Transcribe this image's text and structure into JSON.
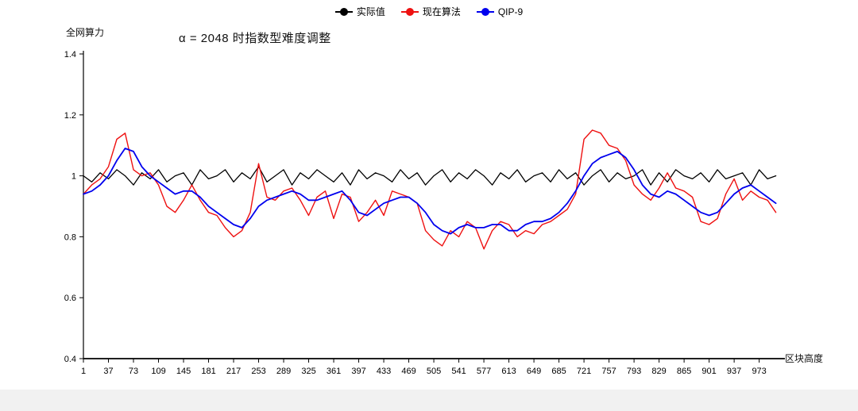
{
  "chart_data": {
    "type": "line",
    "title": "α = 2048 时指数型难度调整",
    "ylabel": "全网算力",
    "xlabel": "区块高度",
    "legend_position": "top",
    "grid": false,
    "xlim": [
      1,
      1010
    ],
    "ylim": [
      0.4,
      1.4
    ],
    "y_ticks": [
      0.4,
      0.6,
      0.8,
      1,
      1.2,
      1.4
    ],
    "x_ticks": [
      1,
      37,
      73,
      109,
      145,
      181,
      217,
      253,
      289,
      325,
      361,
      397,
      433,
      469,
      505,
      541,
      577,
      613,
      649,
      685,
      721,
      757,
      793,
      829,
      865,
      901,
      937,
      973
    ],
    "x": [
      1,
      13,
      25,
      37,
      49,
      61,
      73,
      85,
      97,
      109,
      121,
      133,
      145,
      157,
      169,
      181,
      193,
      205,
      217,
      229,
      241,
      253,
      265,
      277,
      289,
      301,
      313,
      325,
      337,
      349,
      361,
      373,
      385,
      397,
      409,
      421,
      433,
      445,
      457,
      469,
      481,
      493,
      505,
      517,
      529,
      541,
      553,
      565,
      577,
      589,
      601,
      613,
      625,
      637,
      649,
      661,
      673,
      685,
      697,
      709,
      721,
      733,
      745,
      757,
      769,
      781,
      793,
      805,
      817,
      829,
      841,
      853,
      865,
      877,
      889,
      901,
      913,
      925,
      937,
      949,
      961,
      973,
      985,
      997
    ],
    "series": [
      {
        "name": "实际值",
        "color": "#000000",
        "values": [
          1.0,
          0.98,
          1.01,
          0.99,
          1.02,
          1.0,
          0.97,
          1.01,
          0.99,
          1.02,
          0.98,
          1.0,
          1.01,
          0.97,
          1.02,
          0.99,
          1.0,
          1.02,
          0.98,
          1.01,
          0.99,
          1.03,
          0.98,
          1.0,
          1.02,
          0.97,
          1.01,
          0.99,
          1.02,
          1.0,
          0.98,
          1.01,
          0.97,
          1.02,
          0.99,
          1.01,
          1.0,
          0.98,
          1.02,
          0.99,
          1.01,
          0.97,
          1.0,
          1.02,
          0.98,
          1.01,
          0.99,
          1.02,
          1.0,
          0.97,
          1.01,
          0.99,
          1.02,
          0.98,
          1.0,
          1.01,
          0.98,
          1.02,
          0.99,
          1.01,
          0.97,
          1.0,
          1.02,
          0.98,
          1.01,
          0.99,
          1.0,
          1.02,
          0.97,
          1.01,
          0.98,
          1.02,
          1.0,
          0.99,
          1.01,
          0.98,
          1.02,
          0.99,
          1.0,
          1.01,
          0.97,
          1.02,
          0.99,
          1.0
        ]
      },
      {
        "name": "现在算法",
        "color": "#ee1111",
        "values": [
          0.94,
          0.97,
          0.99,
          1.03,
          1.12,
          1.14,
          1.02,
          1.0,
          1.01,
          0.97,
          0.9,
          0.88,
          0.92,
          0.97,
          0.92,
          0.88,
          0.87,
          0.83,
          0.8,
          0.82,
          0.88,
          1.04,
          0.93,
          0.92,
          0.95,
          0.96,
          0.92,
          0.87,
          0.93,
          0.95,
          0.86,
          0.94,
          0.93,
          0.85,
          0.88,
          0.92,
          0.87,
          0.95,
          0.94,
          0.93,
          0.91,
          0.82,
          0.79,
          0.77,
          0.82,
          0.8,
          0.85,
          0.83,
          0.76,
          0.82,
          0.85,
          0.84,
          0.8,
          0.82,
          0.81,
          0.84,
          0.85,
          0.87,
          0.89,
          0.94,
          1.12,
          1.15,
          1.14,
          1.1,
          1.09,
          1.05,
          0.97,
          0.94,
          0.92,
          0.96,
          1.01,
          0.96,
          0.95,
          0.93,
          0.85,
          0.84,
          0.86,
          0.94,
          0.99,
          0.92,
          0.95,
          0.93,
          0.92,
          0.88
        ]
      },
      {
        "name": "QIP-9",
        "color": "#0000ee",
        "values": [
          0.94,
          0.95,
          0.97,
          1.0,
          1.05,
          1.09,
          1.08,
          1.03,
          1.0,
          0.98,
          0.96,
          0.94,
          0.95,
          0.95,
          0.93,
          0.9,
          0.88,
          0.86,
          0.84,
          0.83,
          0.86,
          0.9,
          0.92,
          0.93,
          0.94,
          0.95,
          0.94,
          0.92,
          0.92,
          0.93,
          0.94,
          0.95,
          0.92,
          0.88,
          0.87,
          0.89,
          0.91,
          0.92,
          0.93,
          0.93,
          0.91,
          0.88,
          0.84,
          0.82,
          0.81,
          0.83,
          0.84,
          0.83,
          0.83,
          0.84,
          0.84,
          0.82,
          0.82,
          0.84,
          0.85,
          0.85,
          0.86,
          0.88,
          0.91,
          0.95,
          1.0,
          1.04,
          1.06,
          1.07,
          1.08,
          1.06,
          1.02,
          0.97,
          0.94,
          0.93,
          0.95,
          0.94,
          0.92,
          0.9,
          0.88,
          0.87,
          0.88,
          0.91,
          0.94,
          0.96,
          0.97,
          0.95,
          0.93,
          0.91
        ]
      }
    ]
  }
}
